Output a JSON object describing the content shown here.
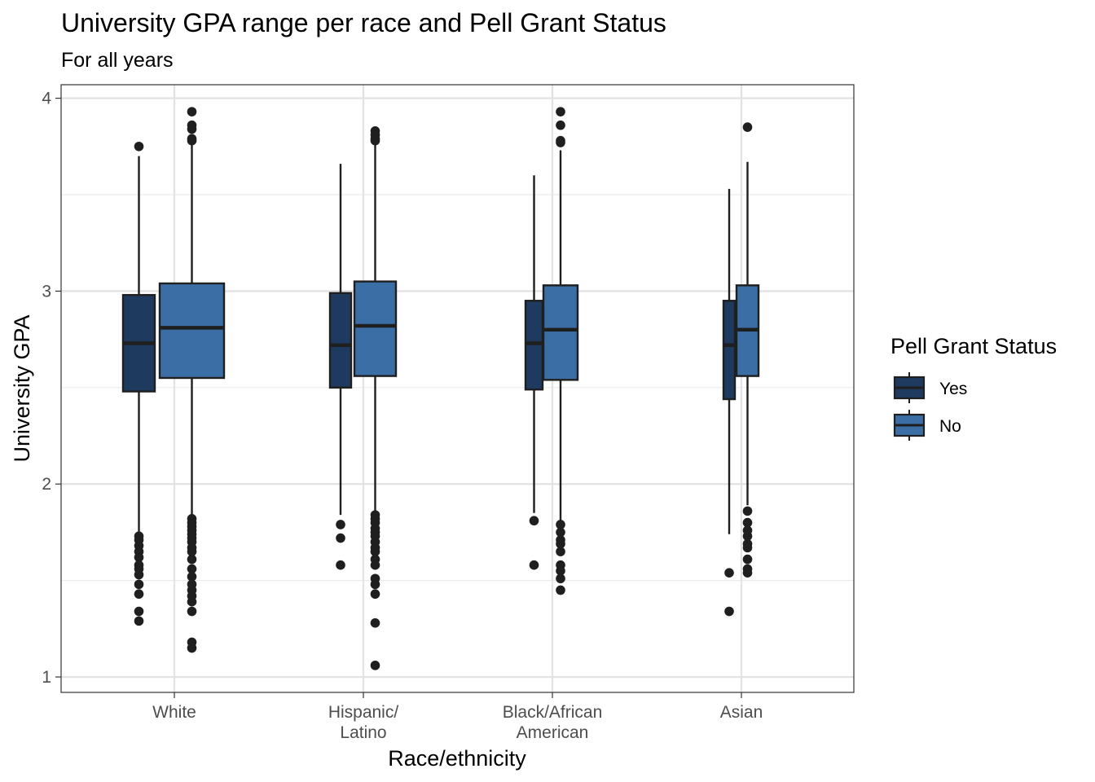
{
  "chart_data": {
    "type": "boxplot",
    "title": "University GPA range per race and Pell Grant Status",
    "subtitle": "For all years",
    "xlabel": "Race/ethnicity",
    "ylabel": "University GPA",
    "ylim": [
      0.92,
      4.07
    ],
    "yticks": [
      1,
      2,
      3,
      4
    ],
    "ytick_labels": [
      "1",
      "2",
      "3",
      "4"
    ],
    "categories": [
      {
        "lines": [
          "White"
        ]
      },
      {
        "lines": [
          "Hispanic/",
          "Latino"
        ]
      },
      {
        "lines": [
          "Black/African",
          "American"
        ]
      },
      {
        "lines": [
          "Asian"
        ]
      }
    ],
    "grid": true,
    "legend": {
      "title": "Pell Grant Status",
      "placement": "right",
      "entries": [
        "Yes",
        "No"
      ]
    },
    "series": [
      {
        "name": "Yes",
        "color": "#1f3a5f",
        "boxes": [
          {
            "category": 0,
            "q1": 2.48,
            "median": 2.73,
            "q3": 2.98,
            "whisker_low": 1.74,
            "whisker_high": 3.7,
            "outliers": [
              3.75,
              1.73,
              1.71,
              1.68,
              1.65,
              1.62,
              1.58,
              1.56,
              1.53,
              1.48,
              1.43,
              1.34,
              1.29
            ]
          },
          {
            "category": 1,
            "q1": 2.5,
            "median": 2.72,
            "q3": 2.99,
            "whisker_low": 1.84,
            "whisker_high": 3.66,
            "outliers": [
              1.79,
              1.72,
              1.58
            ]
          },
          {
            "category": 2,
            "q1": 2.49,
            "median": 2.73,
            "q3": 2.95,
            "whisker_low": 1.85,
            "whisker_high": 3.6,
            "outliers": [
              1.81,
              1.58
            ]
          },
          {
            "category": 3,
            "q1": 2.44,
            "median": 2.72,
            "q3": 2.95,
            "whisker_low": 1.74,
            "whisker_high": 3.53,
            "outliers": [
              1.54,
              1.34
            ]
          }
        ]
      },
      {
        "name": "No",
        "color": "#3a6ea5",
        "boxes": [
          {
            "category": 0,
            "q1": 2.55,
            "median": 2.81,
            "q3": 3.04,
            "whisker_low": 1.83,
            "whisker_high": 3.77,
            "outliers": [
              3.93,
              3.86,
              3.84,
              3.79,
              3.78,
              1.82,
              1.8,
              1.78,
              1.76,
              1.74,
              1.72,
              1.7,
              1.67,
              1.65,
              1.61,
              1.56,
              1.52,
              1.48,
              1.45,
              1.42,
              1.39,
              1.34,
              1.18,
              1.15
            ]
          },
          {
            "category": 1,
            "q1": 2.56,
            "median": 2.82,
            "q3": 3.05,
            "whisker_low": 1.85,
            "whisker_high": 3.76,
            "outliers": [
              3.83,
              3.81,
              3.79,
              3.78,
              1.84,
              1.82,
              1.8,
              1.77,
              1.75,
              1.73,
              1.7,
              1.67,
              1.65,
              1.61,
              1.58,
              1.51,
              1.48,
              1.43,
              1.28,
              1.06
            ]
          },
          {
            "category": 2,
            "q1": 2.54,
            "median": 2.8,
            "q3": 3.03,
            "whisker_low": 1.81,
            "whisker_high": 3.73,
            "outliers": [
              3.93,
              3.86,
              3.78,
              3.77,
              1.79,
              1.75,
              1.71,
              1.69,
              1.65,
              1.58,
              1.55,
              1.51,
              1.45
            ]
          },
          {
            "category": 3,
            "q1": 2.56,
            "median": 2.8,
            "q3": 3.03,
            "whisker_low": 1.89,
            "whisker_high": 3.67,
            "outliers": [
              3.85,
              1.86,
              1.8,
              1.76,
              1.73,
              1.69,
              1.67,
              1.61,
              1.56,
              1.54
            ]
          }
        ]
      }
    ]
  }
}
